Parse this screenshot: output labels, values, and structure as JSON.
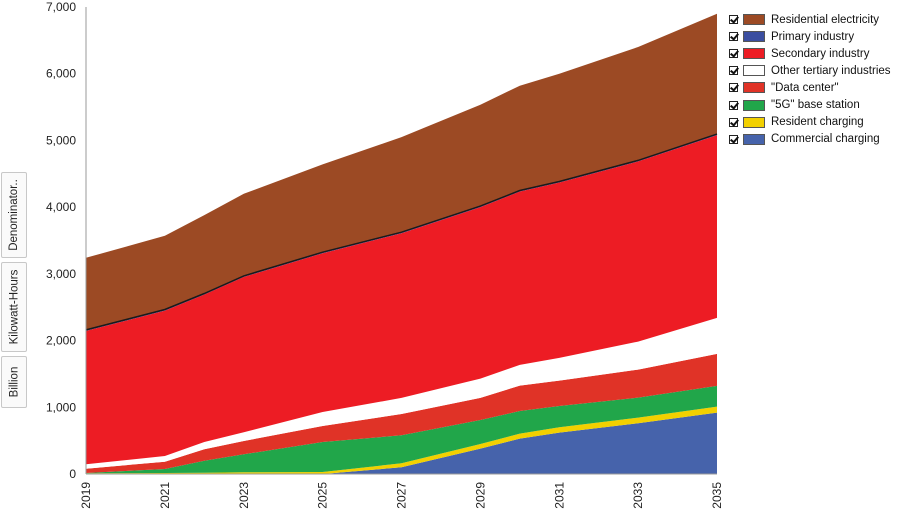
{
  "chart_data": {
    "type": "area",
    "stacked": true,
    "x": [
      2019,
      2021,
      2022,
      2023,
      2025,
      2027,
      2029,
      2030,
      2031,
      2033,
      2035
    ],
    "xticks": [
      "2019",
      "2021",
      "2023",
      "2025",
      "2027",
      "2029",
      "2031",
      "2033",
      "2035"
    ],
    "yticks": [
      "0",
      "1,000",
      "2,000",
      "3,000",
      "4,000",
      "5,000",
      "6,000",
      "7,000"
    ],
    "ylim": [
      0,
      7000
    ],
    "xlim": [
      2019,
      2035
    ],
    "ylabel_parts": [
      "Billion",
      "Kilowatt-Hours",
      "Denominator.."
    ],
    "series": [
      {
        "name": "Commercial charging",
        "color": "#4663ab",
        "values": [
          0,
          0,
          0,
          0,
          0,
          100,
          380,
          530,
          620,
          760,
          920
        ]
      },
      {
        "name": "Resident charging",
        "color": "#f2d000",
        "values": [
          10,
          15,
          20,
          25,
          30,
          60,
          70,
          75,
          80,
          85,
          90
        ]
      },
      {
        "name": "\"5G\" base station",
        "color": "#21a64a",
        "values": [
          5,
          60,
          180,
          270,
          450,
          420,
          360,
          340,
          320,
          300,
          310
        ]
      },
      {
        "name": "\"Data center\"",
        "color": "#e03327",
        "values": [
          65,
          110,
          170,
          200,
          240,
          320,
          330,
          380,
          380,
          420,
          480
        ]
      },
      {
        "name": "Other tertiary industries",
        "color": "#ffffff",
        "values": [
          65,
          85,
          110,
          130,
          210,
          240,
          290,
          310,
          340,
          420,
          540
        ]
      },
      {
        "name": "Secondary industry",
        "color": "#ed1c24",
        "values": [
          2000,
          2180,
          2210,
          2330,
          2380,
          2470,
          2570,
          2600,
          2630,
          2700,
          2740
        ]
      },
      {
        "name": "Primary industry",
        "color": "#3b4ea0",
        "values": [
          15,
          15,
          15,
          15,
          15,
          15,
          15,
          15,
          15,
          15,
          15
        ]
      },
      {
        "name": "Residential electricity",
        "color": "#9c4a24",
        "values": [
          1080,
          1105,
          1175,
          1230,
          1315,
          1425,
          1520,
          1570,
          1615,
          1700,
          1805
        ]
      }
    ]
  },
  "legend": [
    {
      "label": "Residential electricity",
      "color": "#9c4a24"
    },
    {
      "label": "Primary industry",
      "color": "#3b4ea0"
    },
    {
      "label": "Secondary industry",
      "color": "#ed1c24"
    },
    {
      "label": "Other tertiary industries",
      "color": "#ffffff"
    },
    {
      "label": "\"Data center\"",
      "color": "#e03327"
    },
    {
      "label": "\"5G\" base station",
      "color": "#21a64a"
    },
    {
      "label": "Resident charging",
      "color": "#f2d000"
    },
    {
      "label": "Commercial charging",
      "color": "#4663ab"
    }
  ]
}
